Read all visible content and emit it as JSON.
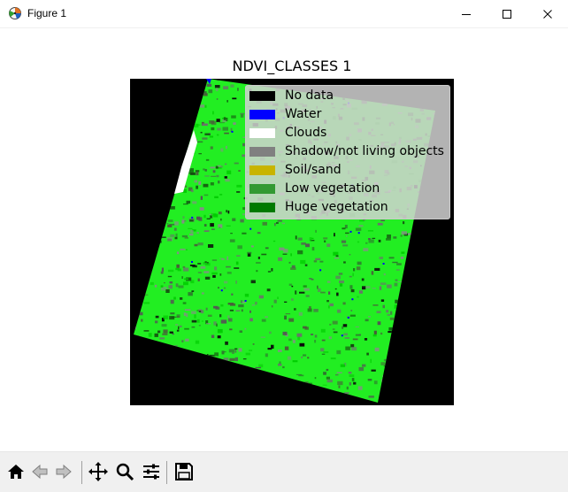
{
  "window": {
    "title": "Figure 1",
    "icon": "matplotlib-icon",
    "controls": [
      "minimize-icon",
      "maximize-icon",
      "close-icon"
    ]
  },
  "plot": {
    "title": "NDVI_CLASSES 1",
    "background_color": "#000000",
    "dominant_color": "#00ff00"
  },
  "legend": {
    "items": [
      {
        "label": "No data",
        "color": "#000000"
      },
      {
        "label": "Water",
        "color": "#0000ff"
      },
      {
        "label": "Clouds",
        "color": "#ffffff"
      },
      {
        "label": "Shadow/not living objects",
        "color": "#808080"
      },
      {
        "label": "Soil/sand",
        "color": "#c8b400"
      },
      {
        "label": "Low vegetation",
        "color": "#339933"
      },
      {
        "label": "Huge vegetation",
        "color": "#007a00"
      }
    ]
  },
  "toolbar": {
    "tools": [
      "home-icon",
      "back-icon",
      "forward-icon",
      "pan-icon",
      "zoom-icon",
      "configure-subplots-icon",
      "save-icon"
    ]
  }
}
